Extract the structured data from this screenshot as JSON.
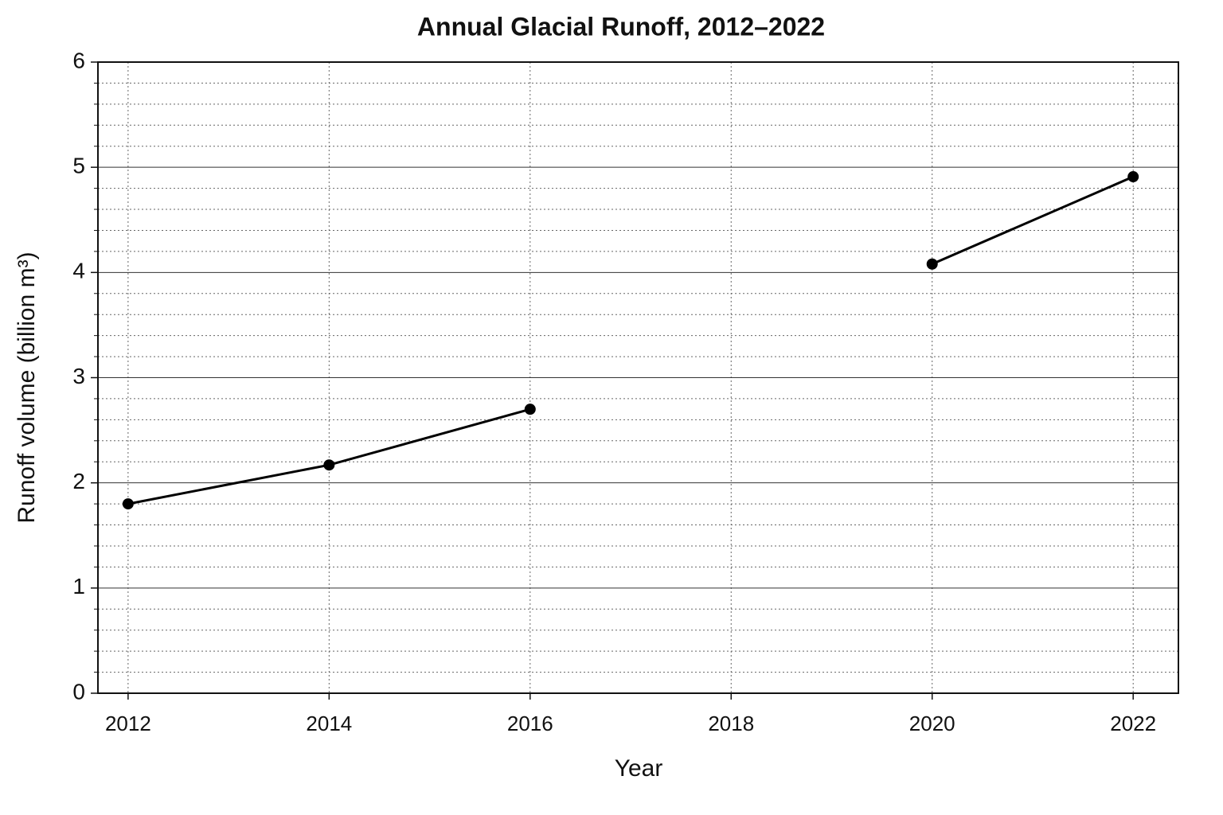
{
  "chart_data": {
    "type": "line",
    "title": "Annual Glacial Runoff, 2012–2022",
    "x_label": "Year",
    "y_label": "Runoff volume (billion m³)",
    "x": [
      2012,
      2014,
      2016,
      2018,
      2020,
      2022
    ],
    "values": [
      1.8,
      2.17,
      2.7,
      null,
      4.08,
      4.91
    ],
    "color": "#000000",
    "xlim": [
      2011.7,
      2022.45
    ],
    "xticks": [
      2012,
      2014,
      2016,
      2018,
      2020,
      2022
    ],
    "ylim": [
      0,
      6
    ],
    "yticks": [
      0,
      1,
      2,
      3,
      4,
      5,
      6
    ],
    "y_minor_ticks": [
      0.2,
      0.4,
      0.6,
      0.8,
      1.2,
      1.4,
      1.6,
      1.8,
      2.2,
      2.4,
      2.6,
      2.8,
      3.2,
      3.4,
      3.6,
      3.8,
      4.2,
      4.4,
      4.6,
      4.8,
      5.2,
      5.4,
      5.6,
      5.8
    ],
    "grid": true
  }
}
